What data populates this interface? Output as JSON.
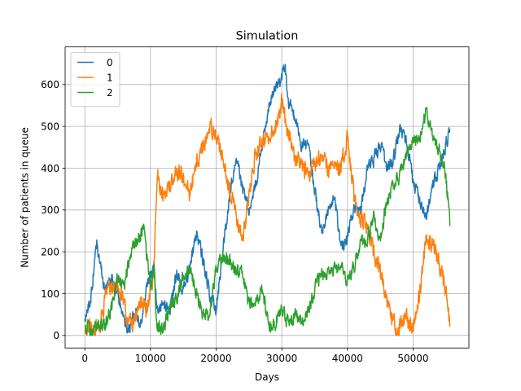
{
  "chart_data": {
    "type": "line",
    "title": "Simulation",
    "xlabel": "Days",
    "ylabel": "Number of patients in queue",
    "xlim": [
      -3000,
      58500
    ],
    "ylim": [
      -30,
      690
    ],
    "xticks": [
      0,
      10000,
      20000,
      30000,
      40000,
      50000
    ],
    "xtick_labels": [
      "0",
      "10000",
      "20000",
      "30000",
      "40000",
      "50000"
    ],
    "yticks": [
      0,
      100,
      200,
      300,
      400,
      500,
      600
    ],
    "ytick_labels": [
      "0",
      "100",
      "200",
      "300",
      "400",
      "500",
      "600"
    ],
    "grid": true,
    "legend": {
      "placement": "top-left",
      "entries": [
        "0",
        "1",
        "2"
      ]
    },
    "noise_amplitude": [
      28,
      40,
      30
    ],
    "series": [
      {
        "name": "0",
        "color": "#1f77b4",
        "x": [
          0,
          1000,
          1800,
          2500,
          3000,
          4000,
          5000,
          6000,
          6800,
          7500,
          8500,
          9500,
          10500,
          11000,
          12000,
          13000,
          14000,
          15000,
          16000,
          17000,
          18000,
          19000,
          20000,
          21000,
          22000,
          23000,
          24000,
          25000,
          26000,
          27000,
          28000,
          29000,
          30000,
          30500,
          31000,
          32000,
          33000,
          34000,
          35000,
          36000,
          37000,
          38000,
          39000,
          40000,
          41000,
          42000,
          43000,
          44000,
          45000,
          46000,
          47000,
          48000,
          49000,
          50000,
          51000,
          52000,
          53000,
          54000,
          55000,
          55600
        ],
        "values": [
          30,
          100,
          220,
          160,
          110,
          140,
          100,
          30,
          10,
          60,
          30,
          120,
          170,
          60,
          80,
          60,
          150,
          110,
          160,
          250,
          180,
          100,
          60,
          200,
          330,
          430,
          350,
          300,
          360,
          460,
          550,
          590,
          620,
          650,
          560,
          520,
          450,
          460,
          350,
          250,
          290,
          340,
          210,
          230,
          310,
          290,
          400,
          420,
          460,
          400,
          420,
          500,
          460,
          370,
          320,
          280,
          360,
          400,
          460,
          490
        ]
      },
      {
        "name": "1",
        "color": "#ff7f0e",
        "x": [
          0,
          800,
          1500,
          2500,
          3500,
          4500,
          5500,
          6500,
          7500,
          8500,
          9500,
          10500,
          11000,
          12000,
          13000,
          14000,
          15000,
          16000,
          17000,
          18000,
          19000,
          20000,
          21000,
          22000,
          23000,
          24000,
          25000,
          26000,
          27000,
          28000,
          29000,
          30000,
          31000,
          32000,
          33000,
          34000,
          35000,
          36000,
          37000,
          38000,
          39000,
          40000,
          41000,
          42000,
          43000,
          44000,
          45000,
          46000,
          47000,
          48000,
          49000,
          50000,
          51000,
          52000,
          53000,
          54000,
          55000,
          55600
        ],
        "values": [
          20,
          30,
          10,
          40,
          110,
          120,
          100,
          40,
          30,
          80,
          60,
          150,
          390,
          330,
          350,
          390,
          380,
          330,
          420,
          450,
          500,
          480,
          420,
          350,
          290,
          230,
          330,
          430,
          470,
          470,
          500,
          560,
          480,
          420,
          410,
          380,
          410,
          420,
          400,
          400,
          400,
          470,
          330,
          280,
          260,
          200,
          150,
          80,
          30,
          20,
          40,
          10,
          100,
          240,
          220,
          170,
          100,
          20
        ]
      },
      {
        "name": "2",
        "color": "#2ca02c",
        "x": [
          0,
          1000,
          2000,
          3000,
          4000,
          5000,
          6000,
          7000,
          8000,
          9000,
          10000,
          10500,
          11000,
          12000,
          13000,
          14000,
          15000,
          16000,
          17000,
          18000,
          19000,
          20000,
          21000,
          22000,
          23000,
          24000,
          25000,
          26000,
          27000,
          28000,
          29000,
          30000,
          31000,
          32000,
          33000,
          34000,
          35000,
          36000,
          37000,
          38000,
          39000,
          40000,
          41000,
          42000,
          43000,
          44000,
          45000,
          46000,
          47000,
          48000,
          49000,
          50000,
          51000,
          52000,
          53000,
          54000,
          55000,
          55600
        ],
        "values": [
          20,
          10,
          30,
          20,
          60,
          140,
          120,
          200,
          230,
          250,
          120,
          160,
          20,
          10,
          70,
          90,
          140,
          160,
          100,
          50,
          40,
          160,
          190,
          180,
          150,
          150,
          80,
          80,
          110,
          20,
          30,
          60,
          30,
          50,
          20,
          60,
          110,
          150,
          140,
          160,
          160,
          130,
          160,
          220,
          230,
          280,
          230,
          320,
          360,
          380,
          440,
          460,
          470,
          540,
          470,
          440,
          380,
          270
        ]
      }
    ]
  }
}
